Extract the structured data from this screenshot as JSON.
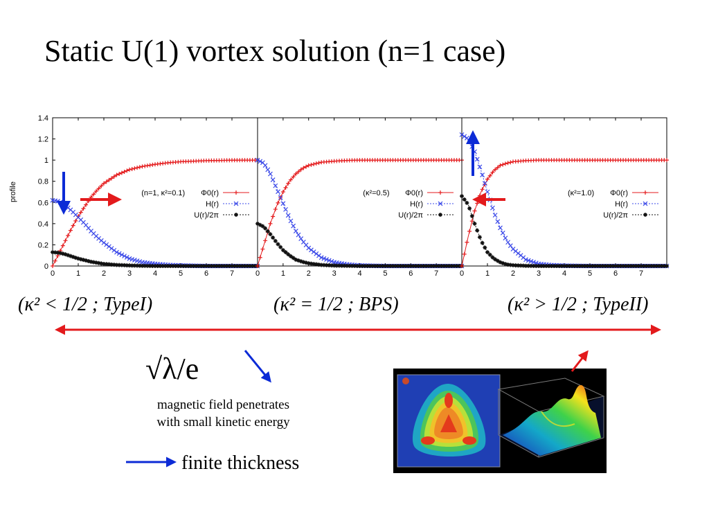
{
  "slide": {
    "title": "Static U(1) vortex solution (n=1 case)",
    "regimes": {
      "type1": {
        "text": "(κ² < 1/2 ; TypeI)"
      },
      "bps": {
        "text": "(κ² = 1/2 ; BPS)"
      },
      "type2": {
        "text": "(κ² > 1/2 ; TypeII)"
      }
    },
    "sqrt_label": "√λ/e",
    "caption_small_line1": "magnetic field penetrates",
    "caption_small_line2": "with small kinetic energy",
    "caption_thick": "finite thickness",
    "colors": {
      "phi": "#e41a1c",
      "h": "#3b49e8",
      "u": "#111111",
      "arrow_blue": "#0c2bd6",
      "arrow_red": "#e31a1c"
    }
  },
  "chart_data": [
    {
      "type": "line",
      "ylabel": "profile",
      "xlim": [
        0,
        8
      ],
      "ylim": [
        0,
        1.4
      ],
      "x_ticks": [
        "0",
        "1",
        "2",
        "3",
        "4",
        "5",
        "6",
        "7"
      ],
      "y_ticks": [
        "0",
        "0.2",
        "0.4",
        "0.6",
        "0.8",
        "1",
        "1.2",
        "1.4"
      ],
      "legend_title": "(n=1, κ²=0.1)",
      "legend_position": "center-right",
      "series": [
        {
          "name": "Φ0(r)",
          "color": "#e41a1c",
          "marker": "+",
          "x": [
            0,
            0.25,
            0.5,
            0.75,
            1,
            1.25,
            1.5,
            1.75,
            2,
            2.5,
            3,
            3.5,
            4,
            4.5,
            5,
            5.5,
            6,
            6.5,
            7,
            7.5,
            8
          ],
          "y": [
            0,
            0.12,
            0.24,
            0.36,
            0.47,
            0.56,
            0.65,
            0.72,
            0.78,
            0.86,
            0.91,
            0.94,
            0.96,
            0.975,
            0.985,
            0.99,
            0.995,
            0.997,
            0.999,
            1,
            1
          ]
        },
        {
          "name": "H(r)",
          "color": "#3b49e8",
          "marker": "x",
          "x": [
            0,
            0.25,
            0.5,
            0.75,
            1,
            1.25,
            1.5,
            1.75,
            2,
            2.5,
            3,
            3.5,
            4,
            4.5,
            5,
            6,
            7,
            8
          ],
          "y": [
            0.62,
            0.61,
            0.57,
            0.52,
            0.46,
            0.4,
            0.33,
            0.27,
            0.22,
            0.13,
            0.07,
            0.035,
            0.02,
            0.01,
            0.005,
            0,
            0,
            0
          ]
        },
        {
          "name": "U(r)/2π",
          "color": "#111111",
          "marker": "*",
          "x": [
            0,
            0.25,
            0.5,
            0.75,
            1,
            1.25,
            1.5,
            1.75,
            2,
            2.5,
            3,
            3.5,
            4,
            5,
            6,
            7,
            8
          ],
          "y": [
            0.13,
            0.125,
            0.11,
            0.09,
            0.07,
            0.055,
            0.04,
            0.03,
            0.02,
            0.01,
            0.005,
            0.002,
            0,
            0,
            0,
            0,
            0
          ]
        }
      ]
    },
    {
      "type": "line",
      "xlim": [
        0,
        8
      ],
      "ylim": [
        0,
        1.4
      ],
      "x_ticks": [
        "0",
        "1",
        "2",
        "3",
        "4",
        "5",
        "6",
        "7"
      ],
      "legend_title": "(κ²=0.5)",
      "legend_position": "center-right",
      "series": [
        {
          "name": "Φ0(r)",
          "color": "#e41a1c",
          "marker": "+",
          "x": [
            0,
            0.25,
            0.5,
            0.75,
            1,
            1.25,
            1.5,
            1.75,
            2,
            2.5,
            3,
            3.5,
            4,
            5,
            6,
            7,
            8
          ],
          "y": [
            0,
            0.2,
            0.4,
            0.57,
            0.7,
            0.8,
            0.87,
            0.92,
            0.95,
            0.98,
            0.99,
            0.997,
            1,
            1,
            1,
            1,
            1
          ]
        },
        {
          "name": "H(r)",
          "color": "#3b49e8",
          "marker": "x",
          "x": [
            0,
            0.25,
            0.5,
            0.75,
            1,
            1.25,
            1.5,
            1.75,
            2,
            2.5,
            3,
            3.5,
            4,
            5,
            6,
            7,
            8
          ],
          "y": [
            1,
            0.97,
            0.87,
            0.73,
            0.59,
            0.45,
            0.33,
            0.24,
            0.17,
            0.08,
            0.035,
            0.015,
            0.005,
            0,
            0,
            0,
            0
          ]
        },
        {
          "name": "U(r)/2π",
          "color": "#111111",
          "marker": "*",
          "x": [
            0,
            0.25,
            0.5,
            0.75,
            1,
            1.25,
            1.5,
            1.75,
            2,
            2.5,
            3,
            3.5,
            4,
            5,
            6,
            7,
            8
          ],
          "y": [
            0.4,
            0.37,
            0.3,
            0.22,
            0.15,
            0.1,
            0.06,
            0.04,
            0.025,
            0.01,
            0.004,
            0.002,
            0,
            0,
            0,
            0,
            0
          ]
        }
      ]
    },
    {
      "type": "line",
      "xlim": [
        0,
        8
      ],
      "ylim": [
        0,
        1.4
      ],
      "x_ticks": [
        "0",
        "1",
        "2",
        "3",
        "4",
        "5",
        "6",
        "7"
      ],
      "legend_title": "(κ²=1.0)",
      "legend_position": "center-right",
      "series": [
        {
          "name": "Φ0(r)",
          "color": "#e41a1c",
          "marker": "+",
          "x": [
            0,
            0.25,
            0.5,
            0.75,
            1,
            1.25,
            1.5,
            1.75,
            2,
            2.5,
            3,
            3.5,
            4,
            5,
            6,
            7,
            8
          ],
          "y": [
            0,
            0.28,
            0.52,
            0.7,
            0.82,
            0.9,
            0.95,
            0.97,
            0.985,
            0.995,
            1,
            1,
            1,
            1,
            1,
            1,
            1
          ]
        },
        {
          "name": "H(r)",
          "color": "#3b49e8",
          "marker": "x",
          "x": [
            0,
            0.25,
            0.5,
            0.75,
            1,
            1.25,
            1.5,
            1.75,
            2,
            2.5,
            3,
            3.5,
            4,
            5,
            6,
            7,
            8
          ],
          "y": [
            1.24,
            1.2,
            1.08,
            0.9,
            0.7,
            0.51,
            0.36,
            0.24,
            0.16,
            0.06,
            0.02,
            0.008,
            0.003,
            0,
            0,
            0,
            0
          ]
        },
        {
          "name": "U(r)/2π",
          "color": "#111111",
          "marker": "*",
          "x": [
            0,
            0.25,
            0.5,
            0.75,
            1,
            1.25,
            1.5,
            1.75,
            2,
            2.5,
            3,
            3.5,
            4,
            5,
            6,
            7,
            8
          ],
          "y": [
            0.66,
            0.58,
            0.4,
            0.24,
            0.13,
            0.07,
            0.035,
            0.015,
            0.007,
            0.002,
            0,
            0,
            0,
            0,
            0,
            0,
            0
          ]
        }
      ]
    }
  ]
}
